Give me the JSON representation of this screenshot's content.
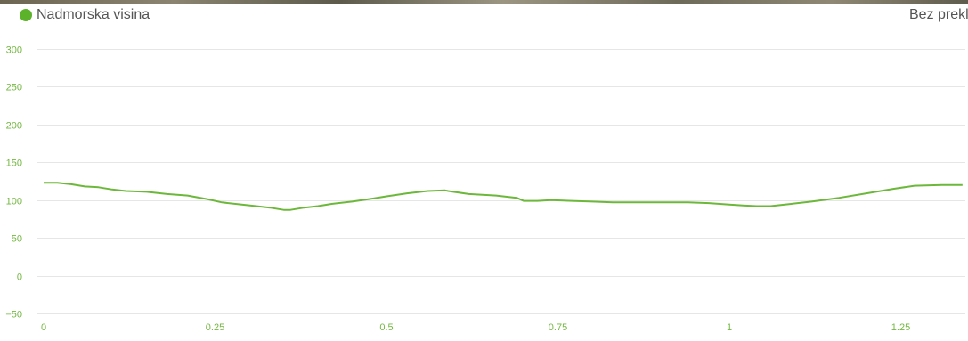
{
  "legend": {
    "label": "Nadmorska visina",
    "color": "#5cb32b"
  },
  "right_label": "Bez prekl",
  "chart_data": {
    "type": "line",
    "title": "",
    "xlabel": "",
    "ylabel": "",
    "xlim": [
      0,
      1.34
    ],
    "ylim": [
      -50,
      300
    ],
    "yticks": [
      300,
      250,
      200,
      150,
      100,
      50,
      0,
      -50
    ],
    "ytick_labels": [
      "300",
      "250",
      "200",
      "150",
      "100",
      "50",
      "0",
      "−50"
    ],
    "xticks": [
      0,
      0.25,
      0.5,
      0.75,
      1,
      1.25
    ],
    "xtick_labels": [
      "0",
      "0.25",
      "0.5",
      "0.75",
      "1",
      "1.25"
    ],
    "grid": true,
    "series": [
      {
        "name": "Nadmorska visina",
        "color": "#6cb83a",
        "x": [
          0,
          0.02,
          0.04,
          0.06,
          0.08,
          0.1,
          0.12,
          0.15,
          0.18,
          0.21,
          0.24,
          0.26,
          0.28,
          0.31,
          0.33,
          0.35,
          0.36,
          0.38,
          0.4,
          0.42,
          0.45,
          0.48,
          0.5,
          0.53,
          0.56,
          0.585,
          0.59,
          0.62,
          0.66,
          0.69,
          0.7,
          0.72,
          0.74,
          0.77,
          0.8,
          0.83,
          0.86,
          0.9,
          0.94,
          0.97,
          1.0,
          1.02,
          1.04,
          1.06,
          1.09,
          1.12,
          1.16,
          1.2,
          1.24,
          1.27,
          1.31,
          1.34
        ],
        "values": [
          123,
          123,
          121,
          118,
          117,
          114,
          112,
          111,
          108,
          106,
          101,
          97,
          95,
          92,
          90,
          87,
          87,
          90,
          92,
          95,
          98,
          102,
          105,
          109,
          112,
          113,
          112,
          108,
          106,
          103,
          99,
          99,
          100,
          99,
          98,
          97,
          97,
          97,
          97,
          96,
          94,
          93,
          92,
          92,
          95,
          98,
          103,
          109,
          115,
          119,
          120,
          120
        ]
      }
    ]
  }
}
